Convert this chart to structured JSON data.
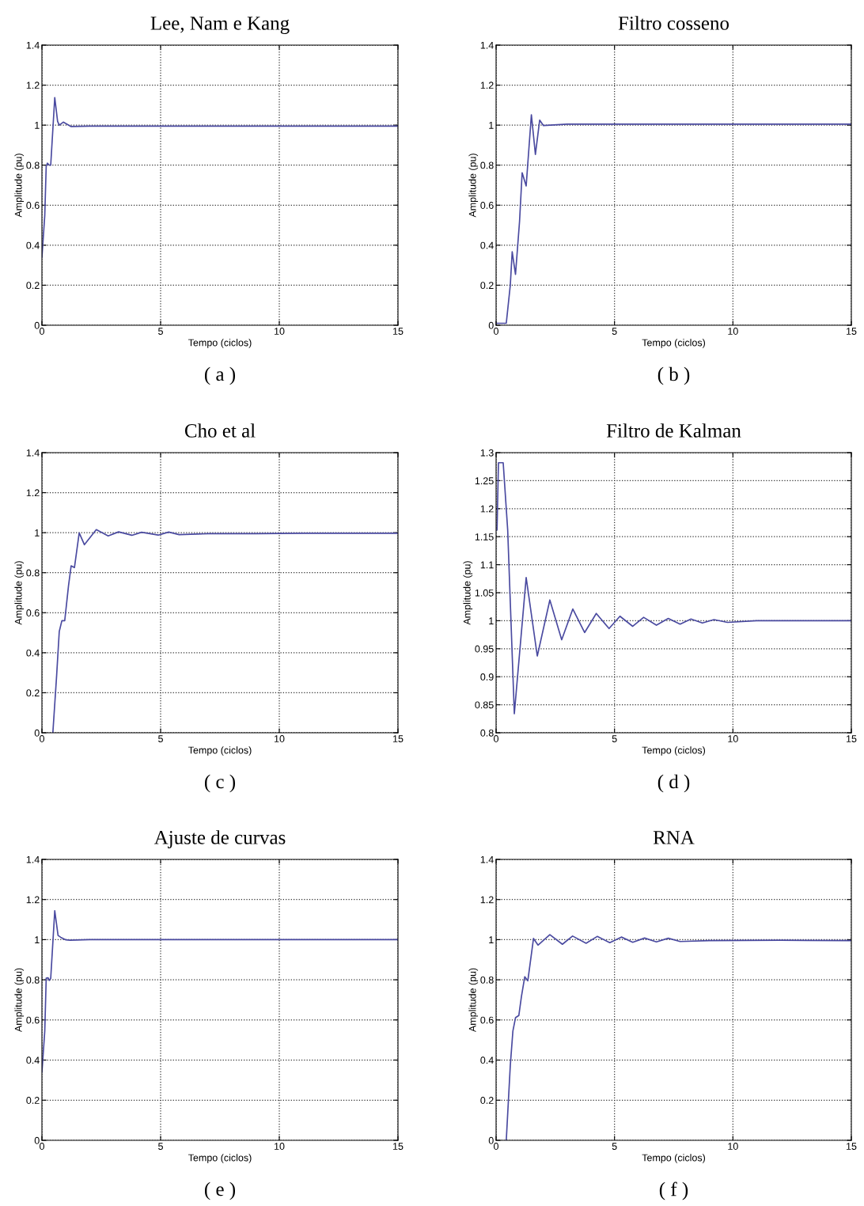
{
  "chart_data": [
    {
      "type": "line",
      "title": "Lee, Nam e Kang",
      "xlabel": "Tempo (ciclos)",
      "ylabel": "Amplitude (pu)",
      "annotations": [
        "( a )"
      ],
      "color": "#4a4aa0",
      "grid": true,
      "x": [
        0,
        0.12,
        0.18,
        0.23,
        0.31,
        0.37,
        0.54,
        0.66,
        0.73,
        0.9,
        1.23,
        2,
        3,
        4,
        5,
        6,
        8,
        10,
        12,
        15
      ],
      "values": [
        0.34,
        0.55,
        0.795,
        0.81,
        0.8,
        0.8,
        1.138,
        1.019,
        1.0,
        1.015,
        0.993,
        0.995,
        0.995,
        0.995,
        0.995,
        0.995,
        0.995,
        0.995,
        0.995,
        0.995
      ],
      "xlim": [
        0,
        15
      ],
      "ylim": [
        0,
        1.4
      ],
      "xticks": [
        0,
        5,
        10,
        15
      ],
      "yticks": [
        0,
        0.2,
        0.4,
        0.6,
        0.8,
        1,
        1.2,
        1.4
      ]
    },
    {
      "type": "line",
      "title": "Filtro cosseno",
      "xlabel": "Tempo (ciclos)",
      "ylabel": "Amplitude (pu)",
      "annotations": [
        "( b )"
      ],
      "color": "#4a4aa0",
      "grid": true,
      "x": [
        0,
        0.43,
        0.6,
        0.68,
        0.82,
        0.99,
        1.1,
        1.27,
        1.49,
        1.66,
        1.84,
        2.0,
        3,
        4,
        5,
        6,
        8,
        10,
        12,
        15
      ],
      "values": [
        0.01,
        0.01,
        0.2,
        0.367,
        0.254,
        0.518,
        0.762,
        0.696,
        1.052,
        0.854,
        1.025,
        0.998,
        1.005,
        1.005,
        1.005,
        1.005,
        1.005,
        1.005,
        1.005,
        1.005
      ],
      "xlim": [
        0,
        15
      ],
      "ylim": [
        0,
        1.4
      ],
      "xticks": [
        0,
        5,
        10,
        15
      ],
      "yticks": [
        0,
        0.2,
        0.4,
        0.6,
        0.8,
        1,
        1.2,
        1.4
      ]
    },
    {
      "type": "line",
      "title": "Cho et al",
      "xlabel": "Tempo (ciclos)",
      "ylabel": "Amplitude (pu)",
      "annotations": [
        "( c )"
      ],
      "color": "#4a4aa0",
      "grid": true,
      "x": [
        0.46,
        0.62,
        0.73,
        0.84,
        0.96,
        1.12,
        1.23,
        1.37,
        1.57,
        1.79,
        2.29,
        2.79,
        3.23,
        3.79,
        4.2,
        4.9,
        5.34,
        5.78,
        7,
        9,
        11,
        13,
        15
      ],
      "values": [
        0,
        0.287,
        0.506,
        0.56,
        0.56,
        0.735,
        0.834,
        0.826,
        0.999,
        0.94,
        1.015,
        0.984,
        1.004,
        0.987,
        1.002,
        0.988,
        1.003,
        0.99,
        0.995,
        0.995,
        0.997,
        0.997,
        0.997
      ],
      "xlim": [
        0,
        15
      ],
      "ylim": [
        0,
        1.4
      ],
      "xticks": [
        0,
        5,
        10,
        15
      ],
      "yticks": [
        0,
        0.2,
        0.4,
        0.6,
        0.8,
        1,
        1.2,
        1.4
      ]
    },
    {
      "type": "line",
      "title": "Filtro de Kalman",
      "xlabel": "Tempo (ciclos)",
      "ylabel": "Amplitude (pu)",
      "annotations": [
        "( d )"
      ],
      "color": "#4a4aa0",
      "grid": true,
      "x": [
        0.04,
        0.1,
        0.3,
        0.49,
        0.77,
        1.27,
        1.74,
        2.27,
        2.77,
        3.24,
        3.74,
        4.23,
        4.77,
        5.23,
        5.77,
        6.23,
        6.77,
        7.27,
        7.77,
        8.23,
        8.71,
        9.2,
        9.77,
        11,
        13,
        15
      ],
      "values": [
        1.162,
        1.282,
        1.282,
        1.162,
        0.834,
        1.077,
        0.937,
        1.037,
        0.966,
        1.021,
        0.979,
        1.013,
        0.986,
        1.008,
        0.99,
        1.006,
        0.992,
        1.004,
        0.994,
        1.003,
        0.996,
        1.002,
        0.997,
        1.0,
        1.0,
        1.0
      ],
      "xlim": [
        0,
        15
      ],
      "ylim": [
        0.8,
        1.3
      ],
      "xticks": [
        0,
        5,
        10,
        15
      ],
      "yticks": [
        0.8,
        0.85,
        0.9,
        0.95,
        1,
        1.05,
        1.1,
        1.15,
        1.2,
        1.25,
        1.3
      ]
    },
    {
      "type": "line",
      "title": "Ajuste de curvas",
      "xlabel": "Tempo (ciclos)",
      "ylabel": "Amplitude (pu)",
      "annotations": [
        "( e )"
      ],
      "color": "#4a4aa0",
      "grid": true,
      "x": [
        0,
        0.12,
        0.18,
        0.26,
        0.31,
        0.37,
        0.54,
        0.68,
        0.79,
        1.01,
        1.18,
        2,
        4,
        6,
        8,
        10,
        12,
        15
      ],
      "values": [
        0.34,
        0.545,
        0.808,
        0.81,
        0.797,
        0.807,
        1.144,
        1.021,
        1.012,
        0.999,
        0.997,
        1.0,
        1.0,
        1.0,
        1.0,
        1.0,
        1.0,
        1.0
      ],
      "xlim": [
        0,
        15
      ],
      "ylim": [
        0,
        1.4
      ],
      "xticks": [
        0,
        5,
        10,
        15
      ],
      "yticks": [
        0,
        0.2,
        0.4,
        0.6,
        0.8,
        1,
        1.2,
        1.4
      ]
    },
    {
      "type": "line",
      "title": "RNA",
      "xlabel": "Tempo (ciclos)",
      "ylabel": "Amplitude (pu)",
      "annotations": [
        "( f )"
      ],
      "color": "#4a4aa0",
      "grid": true,
      "x": [
        0.43,
        0.6,
        0.71,
        0.82,
        0.96,
        1.07,
        1.21,
        1.34,
        1.58,
        1.77,
        2.27,
        2.8,
        3.23,
        3.8,
        4.27,
        4.8,
        5.29,
        5.77,
        6.27,
        6.77,
        7.27,
        7.77,
        9,
        12,
        15
      ],
      "values": [
        0,
        0.373,
        0.545,
        0.611,
        0.622,
        0.716,
        0.815,
        0.795,
        1.006,
        0.973,
        1.025,
        0.977,
        1.018,
        0.982,
        1.016,
        0.985,
        1.013,
        0.987,
        1.008,
        0.989,
        1.007,
        0.991,
        0.995,
        0.997,
        0.995
      ],
      "xlim": [
        0,
        15
      ],
      "ylim": [
        0,
        1.4
      ],
      "xticks": [
        0,
        5,
        10,
        15
      ],
      "yticks": [
        0,
        0.2,
        0.4,
        0.6,
        0.8,
        1,
        1.2,
        1.4
      ]
    }
  ]
}
